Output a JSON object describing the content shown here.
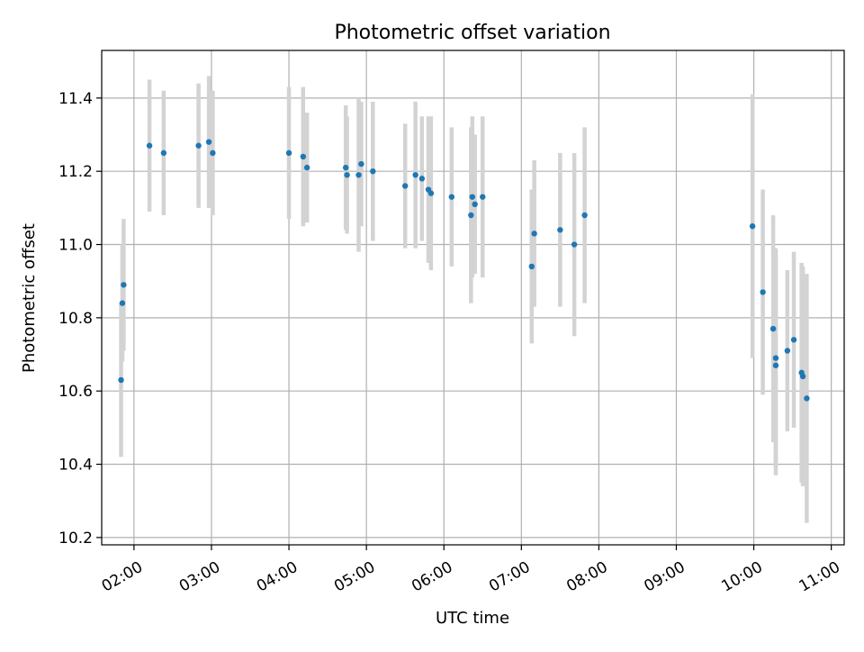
{
  "chart_data": {
    "type": "scatter",
    "title": "Photometric offset variation",
    "xlabel": "UTC time",
    "ylabel": "Photometric offset",
    "xlim": [
      "01:35",
      "11:10"
    ],
    "ylim": [
      10.18,
      11.53
    ],
    "x_ticks": [
      "02:00",
      "03:00",
      "04:00",
      "05:00",
      "06:00",
      "07:00",
      "08:00",
      "09:00",
      "10:00",
      "11:00"
    ],
    "y_ticks": [
      10.2,
      10.4,
      10.6,
      10.8,
      11.0,
      11.2,
      11.4
    ],
    "y_tick_labels": [
      "10.2",
      "10.4",
      "10.6",
      "10.8",
      "11.0",
      "11.2",
      "11.4"
    ],
    "grid": true,
    "colors": {
      "point": "#1f77b4",
      "errorbar": "#d3d3d3",
      "grid": "#b0b0b0"
    },
    "series": [
      {
        "x": [
          "01:50",
          "01:51",
          "01:52",
          "02:12",
          "02:23",
          "02:50",
          "02:58",
          "03:01",
          "04:00",
          "04:11",
          "04:14",
          "04:44",
          "04:45",
          "04:54",
          "04:56",
          "05:05",
          "05:30",
          "05:38",
          "05:43",
          "05:48",
          "05:50",
          "06:06",
          "06:21",
          "06:22",
          "06:24",
          "06:30",
          "07:08",
          "07:10",
          "07:30",
          "07:41",
          "07:49",
          "09:59",
          "10:07",
          "10:15",
          "10:17",
          "10:17",
          "10:26",
          "10:31",
          "10:37",
          "10:38",
          "10:41"
        ],
        "y": [
          10.63,
          10.84,
          10.89,
          11.27,
          11.25,
          11.27,
          11.28,
          11.25,
          11.25,
          11.24,
          11.21,
          11.21,
          11.19,
          11.19,
          11.22,
          11.2,
          11.16,
          11.19,
          11.18,
          11.15,
          11.14,
          11.13,
          11.08,
          11.13,
          11.11,
          11.13,
          10.94,
          11.03,
          11.04,
          11.0,
          11.08,
          11.05,
          10.87,
          10.77,
          10.69,
          10.67,
          10.71,
          10.74,
          10.65,
          10.64,
          10.58
        ],
        "yerr": [
          0.21,
          0.16,
          0.18,
          0.18,
          0.17,
          0.17,
          0.18,
          0.17,
          0.18,
          0.19,
          0.15,
          0.17,
          0.16,
          0.21,
          0.17,
          0.19,
          0.17,
          0.2,
          0.17,
          0.2,
          0.21,
          0.19,
          0.24,
          0.22,
          0.19,
          0.22,
          0.21,
          0.2,
          0.21,
          0.25,
          0.24,
          0.36,
          0.28,
          0.31,
          0.3,
          0.3,
          0.22,
          0.24,
          0.3,
          0.3,
          0.34
        ]
      }
    ]
  }
}
